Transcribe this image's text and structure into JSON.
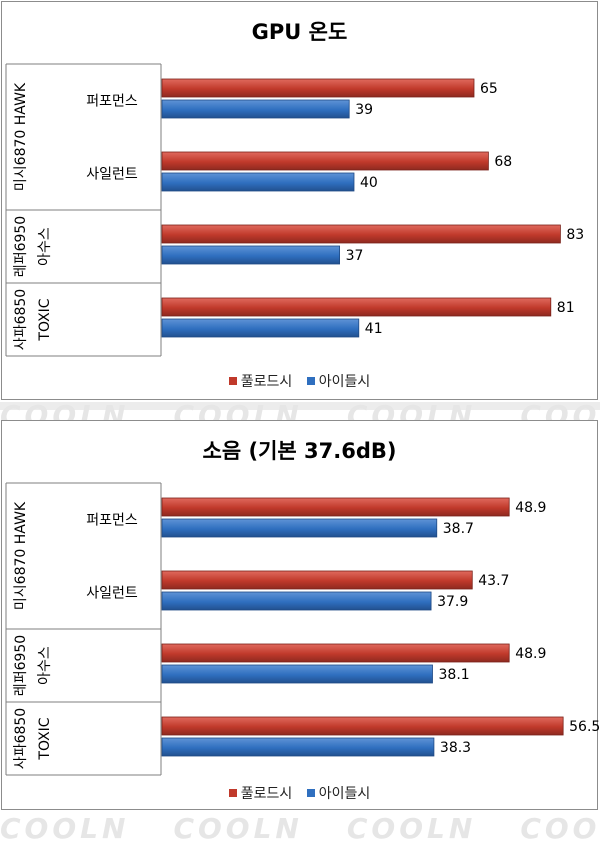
{
  "colors": {
    "full_load": "#c0392b",
    "idle": "#2f6fbf"
  },
  "watermark_text": "COOLN",
  "chart_data": [
    {
      "type": "bar",
      "orientation": "horizontal",
      "title": "GPU 온도",
      "groups": [
        {
          "label": "미시6870 HAWK",
          "categories": [
            "퍼포먼스",
            "사일런트"
          ]
        },
        {
          "label": "레퍼6950",
          "categories": [
            "아수스"
          ]
        },
        {
          "label": "사파6850",
          "categories": [
            "TOXIC"
          ]
        }
      ],
      "categories": [
        "퍼포먼스",
        "사일런트",
        "아수스",
        "TOXIC"
      ],
      "series": [
        {
          "name": "풀로드시",
          "values": [
            65,
            68,
            83,
            81
          ]
        },
        {
          "name": "아이들시",
          "values": [
            39,
            40,
            37,
            41
          ]
        }
      ],
      "xlim": [
        0,
        90
      ],
      "grid": false,
      "legend_position": "bottom"
    },
    {
      "type": "bar",
      "orientation": "horizontal",
      "title": "소음 (기본 37.6dB)",
      "groups": [
        {
          "label": "미시6870 HAWK",
          "categories": [
            "퍼포먼스",
            "사일런트"
          ]
        },
        {
          "label": "레퍼6950",
          "categories": [
            "아수스"
          ]
        },
        {
          "label": "사파6850",
          "categories": [
            "TOXIC"
          ]
        }
      ],
      "categories": [
        "퍼포먼스",
        "사일런트",
        "아수스",
        "TOXIC"
      ],
      "series": [
        {
          "name": "풀로드시",
          "values": [
            48.9,
            43.7,
            48.9,
            56.5
          ]
        },
        {
          "name": "아이들시",
          "values": [
            38.7,
            37.9,
            38.1,
            38.3
          ]
        }
      ],
      "xlim": [
        0,
        60
      ],
      "grid": false,
      "legend_position": "bottom"
    }
  ]
}
